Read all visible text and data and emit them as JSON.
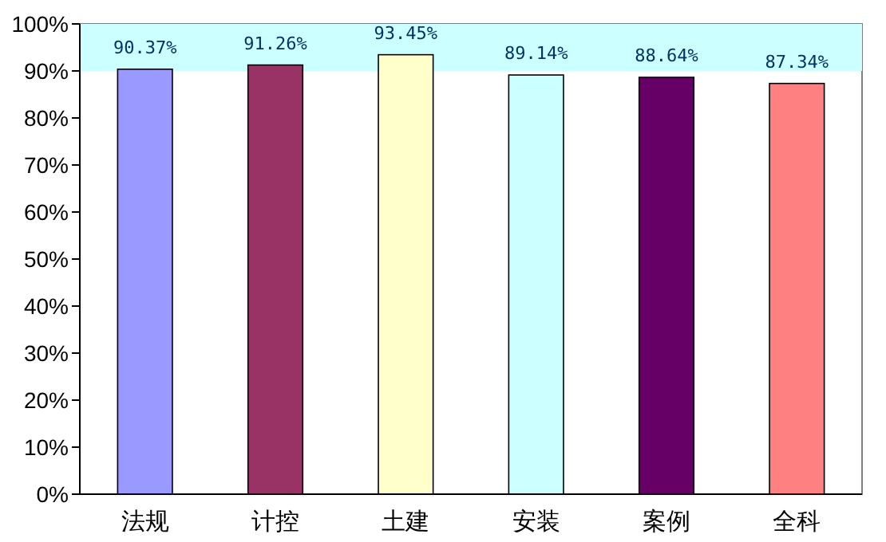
{
  "chart_data": {
    "type": "bar",
    "categories": [
      "法规",
      "计控",
      "土建",
      "安装",
      "案例",
      "全科"
    ],
    "values": [
      90.37,
      91.26,
      93.45,
      89.14,
      88.64,
      87.34
    ],
    "colors": [
      "#9999ff",
      "#993366",
      "#ffffcc",
      "#ccffff",
      "#660066",
      "#ff8080"
    ],
    "value_labels": [
      "90.37%",
      "91.26%",
      "93.45%",
      "89.14%",
      "88.64%",
      "87.34%"
    ],
    "ylim": [
      0,
      100
    ],
    "yticks": [
      {
        "value": 0,
        "label": "0%"
      },
      {
        "value": 10,
        "label": "10%"
      },
      {
        "value": 20,
        "label": "20%"
      },
      {
        "value": 30,
        "label": "30%"
      },
      {
        "value": 40,
        "label": "40%"
      },
      {
        "value": 50,
        "label": "50%"
      },
      {
        "value": 60,
        "label": "60%"
      },
      {
        "value": 70,
        "label": "70%"
      },
      {
        "value": 80,
        "label": "80%"
      },
      {
        "value": 90,
        "label": "90%"
      },
      {
        "value": 100,
        "label": "100%"
      }
    ],
    "grid": false
  }
}
